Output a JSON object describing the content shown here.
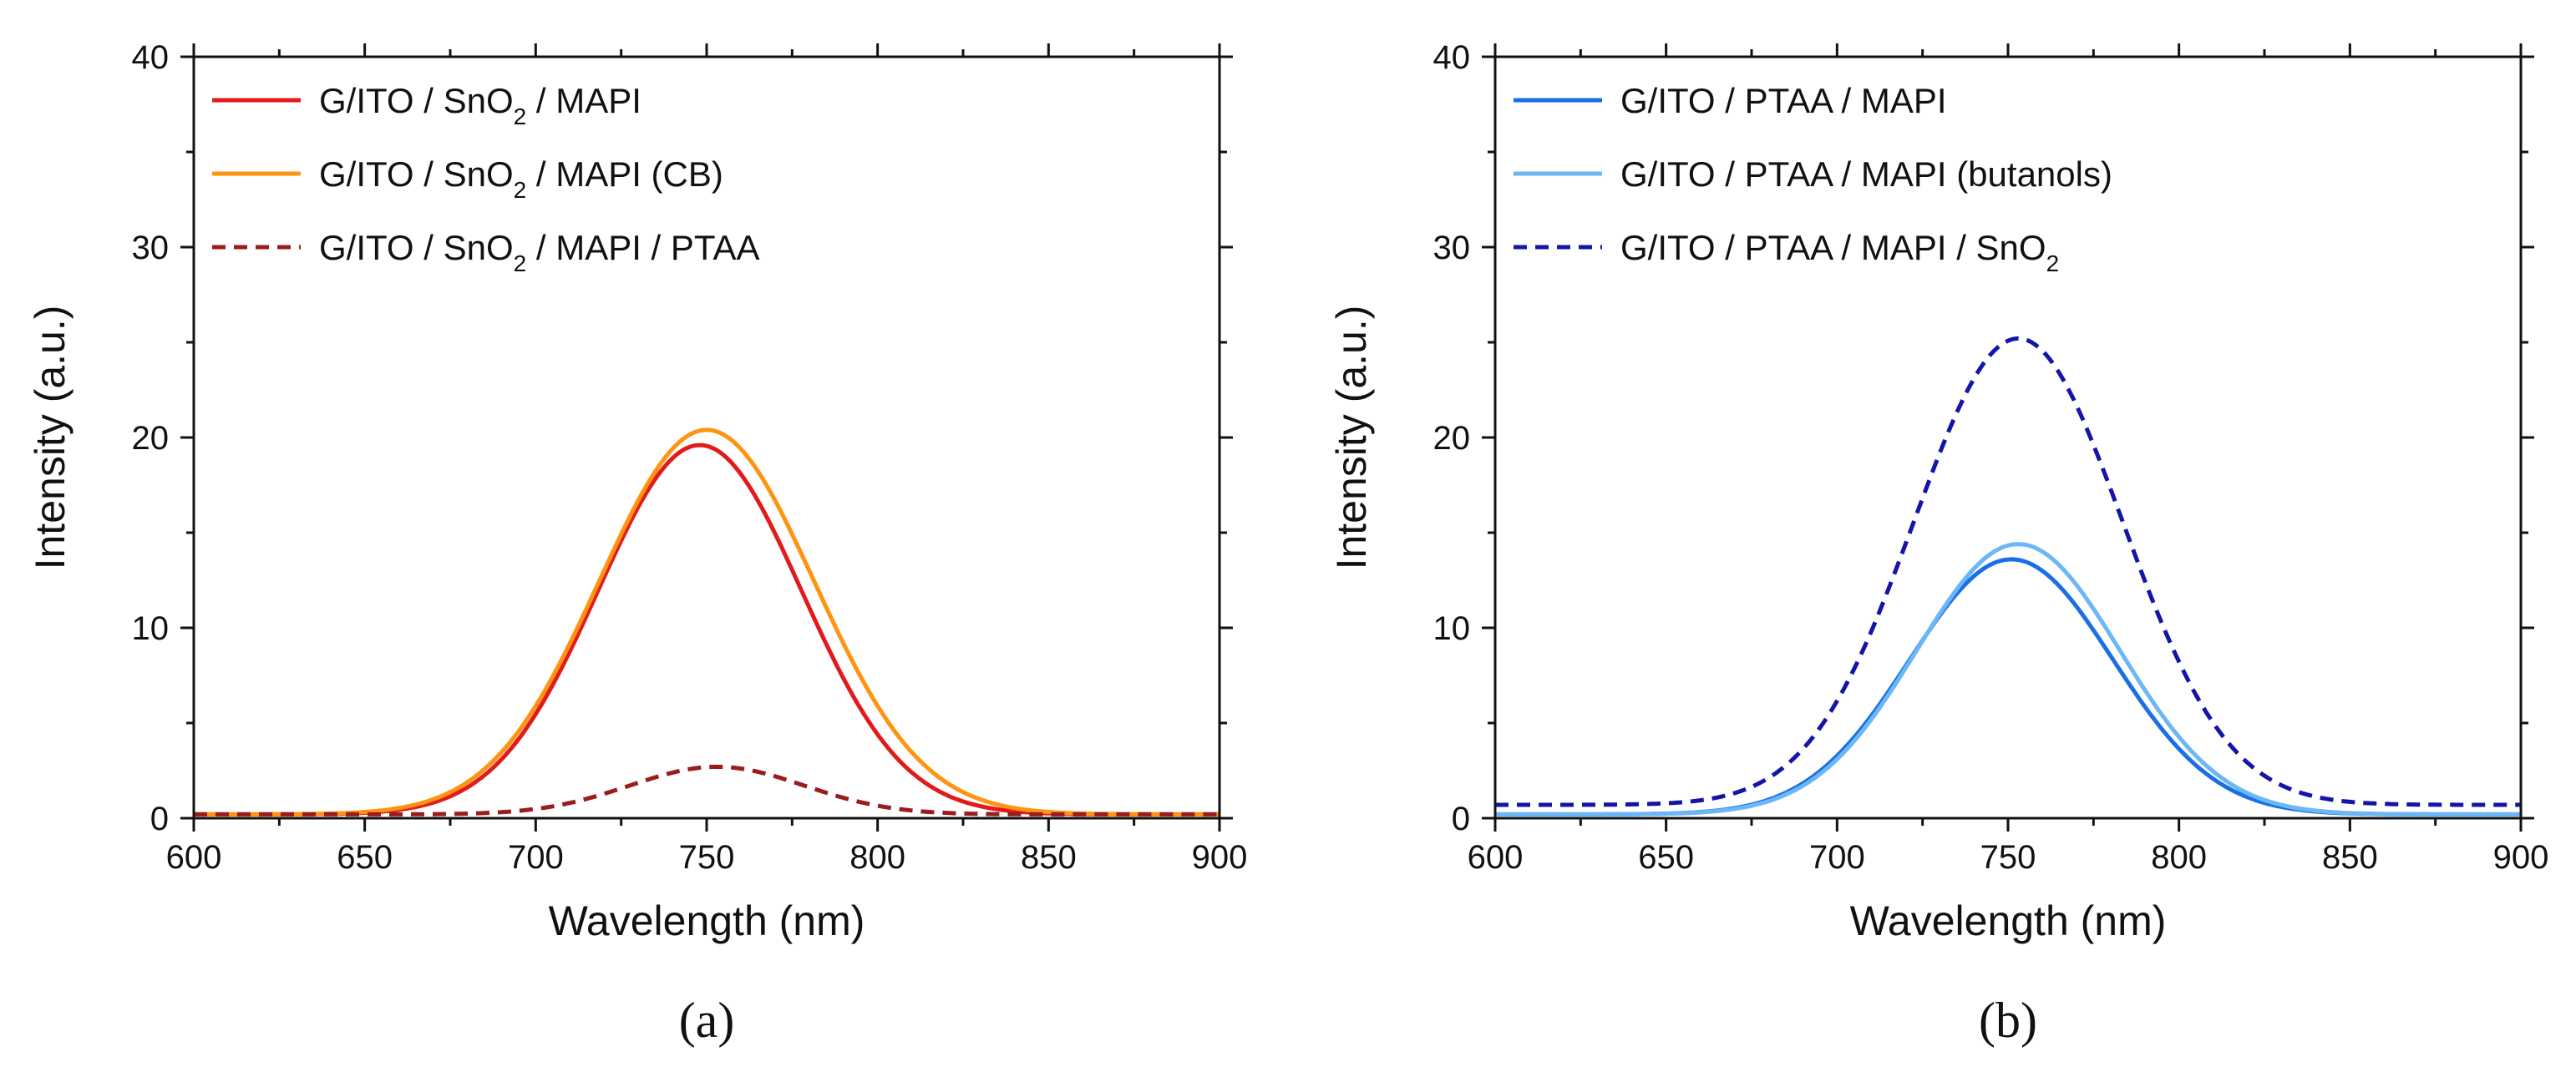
{
  "chart_data": [
    {
      "type": "line",
      "panel_label": "(a)",
      "xlabel": "Wavelength (nm)",
      "ylabel": "Intensity (a.u.)",
      "xlim": [
        600,
        900
      ],
      "ylim": [
        0,
        40
      ],
      "x_ticks": [
        600,
        650,
        700,
        750,
        800,
        850,
        900
      ],
      "y_ticks": [
        0,
        10,
        20,
        30,
        40
      ],
      "legend_position": "top-left",
      "series": [
        {
          "name": "G/ITO / SnO2 / MAPI",
          "legend_parts": [
            "G/ITO / SnO",
            "2",
            " / MAPI"
          ],
          "color": "#e31a1c",
          "dash": "solid",
          "peak_x": 748,
          "peak_y": 19.6,
          "fwhm": 70,
          "baseline": 0.2
        },
        {
          "name": "G/ITO / SnO2 / MAPI (CB)",
          "legend_parts": [
            "G/ITO / SnO",
            "2",
            " / MAPI (CB)"
          ],
          "color": "#ff9410",
          "dash": "solid",
          "peak_x": 750,
          "peak_y": 20.4,
          "fwhm": 74,
          "baseline": 0.2
        },
        {
          "name": "G/ITO / SnO2 / MAPI / PTAA",
          "legend_parts": [
            "G/ITO / SnO",
            "2",
            " / MAPI / PTAA"
          ],
          "color": "#9b1c1c",
          "dash": "dashed",
          "peak_x": 753,
          "peak_y": 2.7,
          "fwhm": 60,
          "baseline": 0.2
        }
      ]
    },
    {
      "type": "line",
      "panel_label": "(b)",
      "xlabel": "Wavelength (nm)",
      "ylabel": "Intensity (a.u.)",
      "xlim": [
        600,
        900
      ],
      "ylim": [
        0,
        40
      ],
      "x_ticks": [
        600,
        650,
        700,
        750,
        800,
        850,
        900
      ],
      "y_ticks": [
        0,
        10,
        20,
        30,
        40
      ],
      "legend_position": "top-left",
      "series": [
        {
          "name": "G/ITO / PTAA / MAPI",
          "legend_parts": [
            "G/ITO / PTAA / MAPI",
            "",
            ""
          ],
          "color": "#1a6fe6",
          "dash": "solid",
          "peak_x": 751,
          "peak_y": 13.6,
          "fwhm": 70,
          "baseline": 0.2
        },
        {
          "name": "G/ITO / PTAA / MAPI (butanols)",
          "legend_parts": [
            "G/ITO / PTAA / MAPI (butanols)",
            "",
            ""
          ],
          "color": "#6cb7f5",
          "dash": "solid",
          "peak_x": 753,
          "peak_y": 14.4,
          "fwhm": 70,
          "baseline": 0.2
        },
        {
          "name": "G/ITO / PTAA / MAPI / SnO2",
          "legend_parts": [
            "G/ITO / PTAA / MAPI / SnO",
            "2",
            ""
          ],
          "color": "#1414a8",
          "dash": "dashed",
          "peak_x": 753,
          "peak_y": 25.2,
          "fwhm": 72,
          "baseline": 0.7
        }
      ]
    }
  ]
}
